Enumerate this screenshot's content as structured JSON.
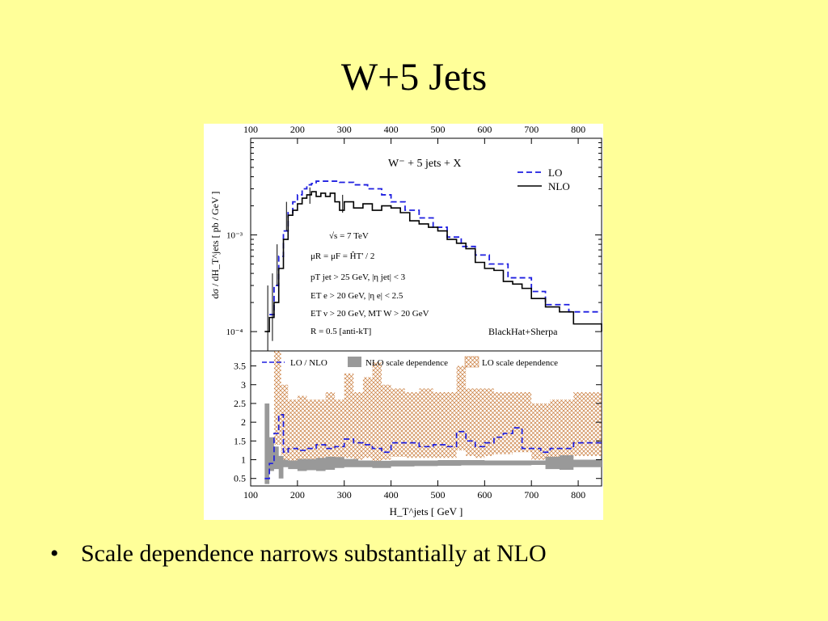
{
  "slide": {
    "title": "W+5 Jets",
    "bullet": "Scale dependence narrows substantially at NLO"
  },
  "chart_data": [
    {
      "type": "line",
      "title": "W⁻ + 5 jets + X",
      "x_unit": "GeV",
      "ylabel": "dσ / dH_T^jets  [ pb / GeV ]",
      "xlim": [
        100,
        850
      ],
      "ylim_log10": [
        -4.2,
        -2.0
      ],
      "yscale": "log",
      "x_ticks": [
        100,
        200,
        300,
        400,
        500,
        600,
        700,
        800
      ],
      "y_tick_labels": [
        "10⁻³",
        "10⁻⁴"
      ],
      "legend": {
        "position": "top-right",
        "entries": [
          "LO",
          "NLO"
        ]
      },
      "params": [
        "√s = 7 TeV",
        "μR = μF = ĤT' / 2",
        "pT jet > 25 GeV, |η jet| < 3",
        "ET e > 20 GeV, |η e| < 2.5",
        "ET ν > 20 GeV, MT W > 20 GeV",
        "R = 0.5 [anti-kT]"
      ],
      "credit": "BlackHat+Sherpa",
      "series": [
        {
          "name": "LO",
          "color": "#1f1fe0",
          "style": "dashed",
          "x": [
            140,
            150,
            160,
            170,
            180,
            190,
            200,
            210,
            220,
            230,
            240,
            260,
            290,
            320,
            350,
            380,
            400,
            430,
            460,
            490,
            520,
            550,
            580,
            610,
            650,
            700,
            730,
            780,
            850
          ],
          "y": [
            0.00015,
            0.0003,
            0.0006,
            0.0011,
            0.0017,
            0.0022,
            0.0026,
            0.003,
            0.0033,
            0.0034,
            0.0036,
            0.0036,
            0.0035,
            0.0033,
            0.003,
            0.0026,
            0.0022,
            0.0018,
            0.0015,
            0.0012,
            0.00095,
            0.00076,
            0.00062,
            0.0005,
            0.00036,
            0.00026,
            0.00019,
            0.00016,
            0.00016
          ]
        },
        {
          "name": "NLO",
          "color": "#000000",
          "style": "solid",
          "x": [
            130,
            140,
            150,
            160,
            170,
            180,
            190,
            200,
            210,
            220,
            230,
            240,
            250,
            260,
            270,
            280,
            290,
            300,
            320,
            340,
            360,
            380,
            400,
            420,
            440,
            460,
            480,
            500,
            520,
            540,
            560,
            580,
            600,
            620,
            640,
            660,
            680,
            700,
            730,
            760,
            790,
            850
          ],
          "y": [
            0.0001,
            0.00014,
            0.0002,
            0.00045,
            0.0009,
            0.0016,
            0.0018,
            0.0021,
            0.0024,
            0.0026,
            0.0028,
            0.0025,
            0.0027,
            0.0025,
            0.0027,
            0.0022,
            0.0018,
            0.0022,
            0.0019,
            0.0021,
            0.0018,
            0.002,
            0.0019,
            0.0017,
            0.0014,
            0.0013,
            0.0012,
            0.0011,
            0.0009,
            0.00082,
            0.00072,
            0.00052,
            0.00045,
            0.00043,
            0.00033,
            0.00031,
            0.00028,
            0.00022,
            0.00018,
            0.00016,
            0.00012,
            0.0001
          ]
        }
      ]
    },
    {
      "type": "line",
      "xlabel": "H_T^jets  [ GeV ]",
      "x_unit": "GeV",
      "xlim": [
        100,
        850
      ],
      "ylim": [
        0.3,
        3.9
      ],
      "x_ticks": [
        100,
        200,
        300,
        400,
        500,
        600,
        700,
        800
      ],
      "y_ticks": [
        0.5,
        1,
        1.5,
        2,
        2.5,
        3,
        3.5
      ],
      "legend": {
        "position": "top",
        "entries": [
          "LO / NLO",
          "NLO scale dependence",
          "LO scale dependence"
        ]
      },
      "series": [
        {
          "name": "LO / NLO",
          "color": "#1f1fe0",
          "style": "dashed",
          "x": [
            130,
            140,
            150,
            160,
            170,
            180,
            200,
            220,
            240,
            260,
            280,
            300,
            320,
            340,
            360,
            380,
            400,
            430,
            460,
            490,
            520,
            540,
            560,
            580,
            600,
            620,
            640,
            660,
            680,
            700,
            720,
            740,
            760,
            790,
            850
          ],
          "y": [
            0.5,
            0.9,
            1.7,
            2.2,
            1.2,
            1.3,
            1.25,
            1.3,
            1.4,
            1.3,
            1.35,
            1.55,
            1.45,
            1.4,
            1.3,
            1.2,
            1.45,
            1.45,
            1.35,
            1.4,
            1.35,
            1.75,
            1.5,
            1.35,
            1.45,
            1.6,
            1.7,
            1.85,
            1.3,
            1.3,
            1.2,
            1.3,
            1.3,
            1.45,
            1.45
          ]
        }
      ],
      "bands": [
        {
          "name": "NLO scale dependence",
          "color": "#999999",
          "x": [
            130,
            140,
            150,
            160,
            170,
            180,
            200,
            220,
            240,
            260,
            280,
            300,
            330,
            360,
            400,
            450,
            500,
            550,
            600,
            650,
            700,
            730,
            760,
            790,
            850
          ],
          "low": [
            0.35,
            0.7,
            0.75,
            0.5,
            0.8,
            0.75,
            0.7,
            0.72,
            0.7,
            0.73,
            0.78,
            0.8,
            0.8,
            0.78,
            0.82,
            0.83,
            0.84,
            0.85,
            0.85,
            0.85,
            0.86,
            0.75,
            0.73,
            0.8,
            0.8
          ],
          "high": [
            2.5,
            1.6,
            1.35,
            1.1,
            1.0,
            0.98,
            1.02,
            1.02,
            1.05,
            1.08,
            1.07,
            1.02,
            0.98,
            0.97,
            0.98,
            0.98,
            0.99,
            0.99,
            0.98,
            0.98,
            0.98,
            1.08,
            1.12,
            1.0,
            1.0
          ]
        },
        {
          "name": "LO scale dependence",
          "color": "#c87a3a",
          "x": [
            150,
            165,
            180,
            200,
            220,
            240,
            260,
            280,
            300,
            320,
            340,
            360,
            380,
            400,
            430,
            460,
            490,
            520,
            540,
            560,
            580,
            600,
            620,
            660,
            700,
            740,
            790,
            850
          ],
          "low": [
            1.4,
            0.9,
            0.95,
            0.9,
            0.9,
            0.92,
            1.0,
            0.95,
            1.05,
            1.0,
            1.05,
            0.95,
            1.0,
            1.08,
            1.05,
            1.05,
            1.05,
            1.05,
            1.25,
            1.1,
            1.05,
            1.1,
            1.15,
            1.2,
            1.0,
            1.0,
            1.1,
            1.1
          ],
          "high": [
            3.9,
            3.0,
            2.6,
            2.7,
            2.6,
            2.6,
            2.8,
            2.6,
            3.3,
            2.8,
            3.2,
            3.6,
            3.0,
            2.9,
            2.8,
            2.9,
            2.8,
            2.8,
            3.5,
            2.9,
            2.9,
            2.9,
            2.8,
            2.8,
            2.5,
            2.6,
            2.8,
            2.8
          ]
        }
      ]
    }
  ]
}
